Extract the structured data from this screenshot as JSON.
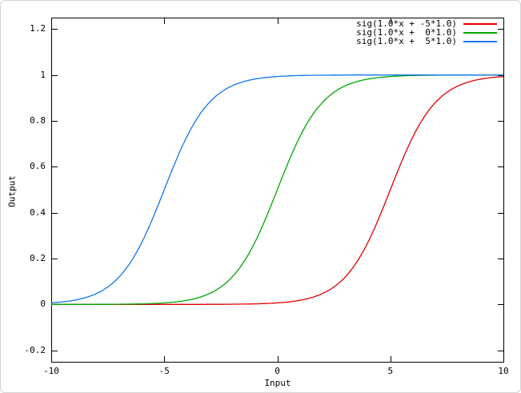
{
  "frame": {
    "background": "#ffffff",
    "border_color": "#d4d4d4",
    "axis_color": "#000000"
  },
  "chart_data": {
    "type": "line",
    "title": "",
    "xlabel": "Input",
    "ylabel": "Output",
    "xlim": [
      -10,
      10
    ],
    "ylim": [
      -0.25,
      1.25
    ],
    "grid": false,
    "legend_position": "top-right-inside",
    "legend_box": false,
    "x_ticks": [
      -10,
      -5,
      0,
      5,
      10
    ],
    "x_tick_labels": [
      "-10",
      "-5",
      "0",
      "5",
      "10"
    ],
    "y_ticks": [
      -0.2,
      0,
      0.2,
      0.4,
      0.6,
      0.8,
      1,
      1.2
    ],
    "y_tick_labels": [
      "-0.2",
      "0",
      "0.2",
      "0.4",
      "0.6",
      "0.8",
      "1",
      "1.2"
    ],
    "x": [
      -10,
      -9,
      -8,
      -7,
      -6,
      -5,
      -4,
      -3,
      -2,
      -1,
      0,
      1,
      2,
      3,
      4,
      5,
      6,
      7,
      8,
      9,
      10
    ],
    "series": [
      {
        "name": "sig(1.0*x + -5*1.0)",
        "color": "#e00000",
        "fn": "sigmoid",
        "slope": 1.0,
        "bias": -5.0,
        "values": [
          0.0,
          0.0,
          0.0,
          1e-05,
          2e-05,
          5e-05,
          0.00012,
          0.00034,
          0.00091,
          0.00247,
          0.00669,
          0.01799,
          0.04743,
          0.1192,
          0.26894,
          0.5,
          0.73106,
          0.8808,
          0.95257,
          0.98201,
          0.99331
        ]
      },
      {
        "name": "sig(1.0*x +  0*1.0)",
        "color": "#00a800",
        "fn": "sigmoid",
        "slope": 1.0,
        "bias": 0.0,
        "values": [
          5e-05,
          0.00012,
          0.00034,
          0.00091,
          0.00247,
          0.00669,
          0.01799,
          0.04743,
          0.1192,
          0.26894,
          0.5,
          0.73106,
          0.8808,
          0.95257,
          0.98201,
          0.99331,
          0.99753,
          0.99909,
          0.99966,
          0.99988,
          0.99995
        ]
      },
      {
        "name": "sig(1.0*x +  5*1.0)",
        "color": "#0f78e8",
        "fn": "sigmoid",
        "slope": 1.0,
        "bias": 5.0,
        "values": [
          0.00669,
          0.01799,
          0.04743,
          0.1192,
          0.26894,
          0.5,
          0.73106,
          0.8808,
          0.95257,
          0.98201,
          0.99331,
          0.99753,
          0.99909,
          0.99966,
          0.99988,
          0.99995,
          0.99998,
          0.99999,
          1.0,
          1.0,
          1.0
        ]
      }
    ]
  }
}
